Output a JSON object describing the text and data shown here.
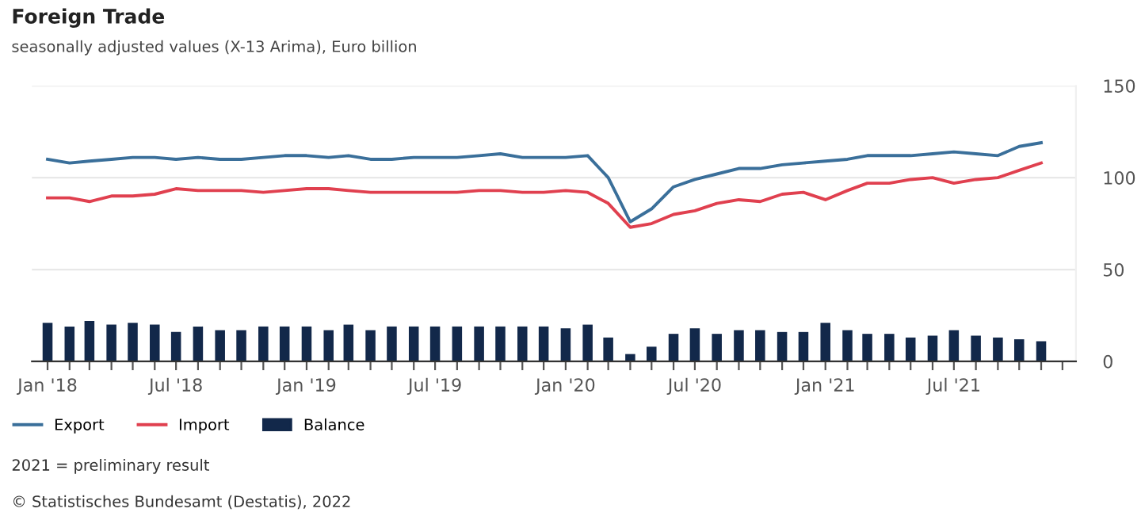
{
  "chart_data": {
    "type": "line",
    "title": "Foreign Trade",
    "subtitle": "seasonally adjusted values (X-13 Arima), Euro billion",
    "x": [
      "2018-01",
      "2018-02",
      "2018-03",
      "2018-04",
      "2018-05",
      "2018-06",
      "2018-07",
      "2018-08",
      "2018-09",
      "2018-10",
      "2018-11",
      "2018-12",
      "2019-01",
      "2019-02",
      "2019-03",
      "2019-04",
      "2019-05",
      "2019-06",
      "2019-07",
      "2019-08",
      "2019-09",
      "2019-10",
      "2019-11",
      "2019-12",
      "2020-01",
      "2020-02",
      "2020-03",
      "2020-04",
      "2020-05",
      "2020-06",
      "2020-07",
      "2020-08",
      "2020-09",
      "2020-10",
      "2020-11",
      "2020-12",
      "2021-01",
      "2021-02",
      "2021-03",
      "2021-04",
      "2021-05",
      "2021-06",
      "2021-07",
      "2021-08",
      "2021-09",
      "2021-10",
      "2021-11"
    ],
    "series": [
      {
        "name": "Export",
        "color": "#3a6f9a",
        "values": [
          110,
          108,
          109,
          110,
          111,
          111,
          110,
          111,
          110,
          110,
          111,
          112,
          112,
          111,
          112,
          110,
          110,
          111,
          111,
          111,
          112,
          113,
          111,
          111,
          111,
          112,
          100,
          76,
          83,
          95,
          99,
          102,
          105,
          105,
          107,
          108,
          109,
          110,
          112,
          112,
          112,
          113,
          114,
          113,
          112,
          117,
          119
        ]
      },
      {
        "name": "Import",
        "color": "#e0404f",
        "values": [
          89,
          89,
          87,
          90,
          90,
          91,
          94,
          93,
          93,
          93,
          92,
          93,
          94,
          94,
          93,
          92,
          92,
          92,
          92,
          92,
          93,
          93,
          92,
          92,
          93,
          92,
          86,
          73,
          75,
          80,
          82,
          86,
          88,
          87,
          91,
          92,
          88,
          93,
          97,
          97,
          99,
          100,
          97,
          99,
          100,
          104,
          108
        ]
      },
      {
        "name": "Balance",
        "type": "bar",
        "color": "#12284a",
        "values": [
          21,
          19,
          22,
          20,
          21,
          20,
          16,
          19,
          17,
          17,
          19,
          19,
          19,
          17,
          20,
          17,
          19,
          19,
          19,
          19,
          19,
          19,
          19,
          19,
          18,
          20,
          13,
          4,
          8,
          15,
          18,
          15,
          17,
          17,
          16,
          16,
          21,
          17,
          15,
          15,
          13,
          14,
          17,
          14,
          13,
          12,
          11
        ]
      }
    ],
    "xlim": [
      "2017-12-10",
      "2021-12-20"
    ],
    "xticks": [
      {
        "value": "2018-01",
        "label": "Jan '18"
      },
      {
        "value": "2018-02",
        "label": null
      },
      {
        "value": "2018-03",
        "label": null
      },
      {
        "value": "2018-04",
        "label": null
      },
      {
        "value": "2018-05",
        "label": null
      },
      {
        "value": "2018-06",
        "label": null
      },
      {
        "value": "2018-07",
        "label": "Jul '18"
      },
      {
        "value": "2018-08",
        "label": null
      },
      {
        "value": "2018-09",
        "label": null
      },
      {
        "value": "2018-10",
        "label": null
      },
      {
        "value": "2018-11",
        "label": null
      },
      {
        "value": "2018-12",
        "label": null
      },
      {
        "value": "2019-01",
        "label": "Jan '19"
      },
      {
        "value": "2019-02",
        "label": null
      },
      {
        "value": "2019-03",
        "label": null
      },
      {
        "value": "2019-04",
        "label": null
      },
      {
        "value": "2019-05",
        "label": null
      },
      {
        "value": "2019-06",
        "label": null
      },
      {
        "value": "2019-07",
        "label": "Jul '19"
      },
      {
        "value": "2019-08",
        "label": null
      },
      {
        "value": "2019-09",
        "label": null
      },
      {
        "value": "2019-10",
        "label": null
      },
      {
        "value": "2019-11",
        "label": null
      },
      {
        "value": "2019-12",
        "label": null
      },
      {
        "value": "2020-01",
        "label": "Jan '20"
      },
      {
        "value": "2020-02",
        "label": null
      },
      {
        "value": "2020-03",
        "label": null
      },
      {
        "value": "2020-04",
        "label": null
      },
      {
        "value": "2020-05",
        "label": null
      },
      {
        "value": "2020-06",
        "label": null
      },
      {
        "value": "2020-07",
        "label": "Jul '20"
      },
      {
        "value": "2020-08",
        "label": null
      },
      {
        "value": "2020-09",
        "label": null
      },
      {
        "value": "2020-10",
        "label": null
      },
      {
        "value": "2020-11",
        "label": null
      },
      {
        "value": "2020-12",
        "label": null
      },
      {
        "value": "2021-01",
        "label": "Jan '21"
      },
      {
        "value": "2021-02",
        "label": null
      },
      {
        "value": "2021-03",
        "label": null
      },
      {
        "value": "2021-04",
        "label": null
      },
      {
        "value": "2021-05",
        "label": null
      },
      {
        "value": "2021-06",
        "label": null
      },
      {
        "value": "2021-07",
        "label": "Jul '21"
      },
      {
        "value": "2021-08",
        "label": null
      },
      {
        "value": "2021-09",
        "label": null
      },
      {
        "value": "2021-10",
        "label": null
      },
      {
        "value": "2021-11",
        "label": null
      },
      {
        "value": "2021-12",
        "label": null
      }
    ],
    "ylim": [
      0,
      150
    ],
    "yticks": [
      0,
      50,
      100,
      150
    ],
    "grid": "y",
    "legend": "bottom left",
    "marker": "none",
    "line_style": "solid",
    "annotations": [
      "2021 = preliminary result",
      "© Statistisches Bundesamt (Destatis), 2022"
    ]
  }
}
